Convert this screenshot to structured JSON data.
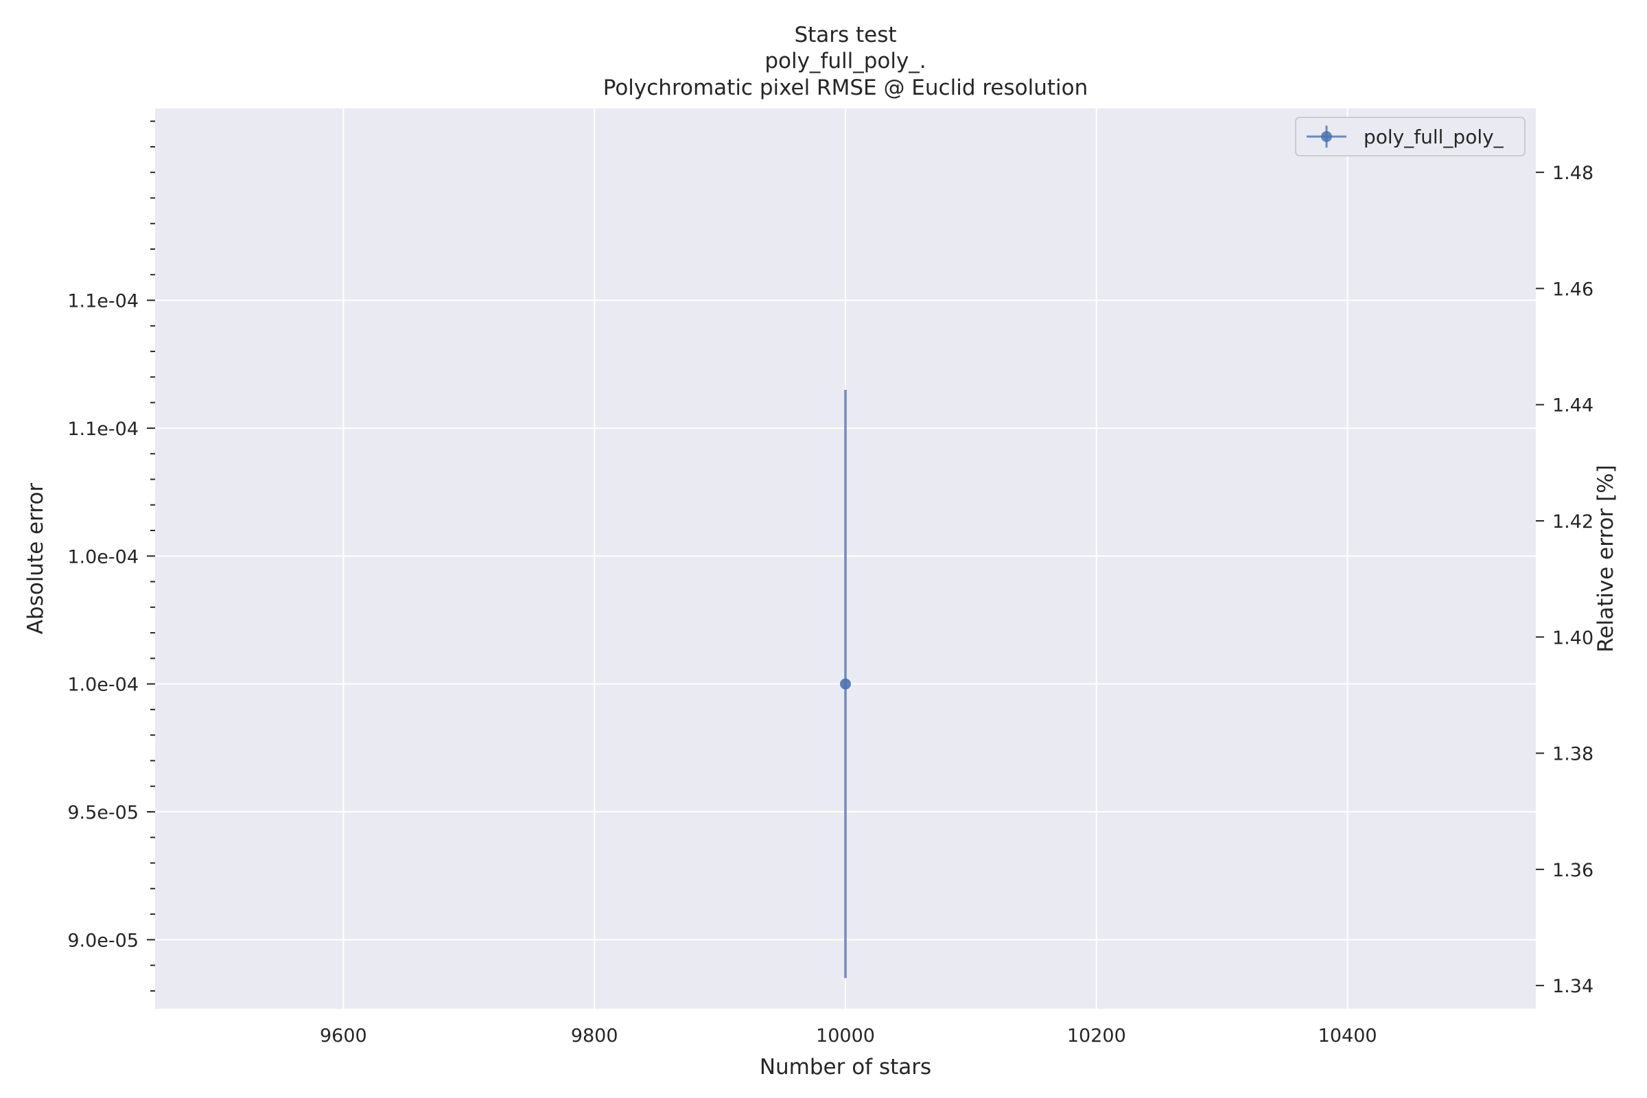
{
  "chart_data": {
    "type": "scatter",
    "title": "Stars test",
    "subtitle": "poly_full_poly_.",
    "subtitle2": "Polychromatic pixel RMSE @ Euclid resolution",
    "xlabel": "Number of stars",
    "ylabel": "Absolute error",
    "y2label": "Relative error [%]",
    "xlim": [
      9450,
      10550
    ],
    "ylim": [
      8.73e-05,
      0.0001225
    ],
    "y2lim": [
      1.336,
      1.491
    ],
    "x_ticks": [
      9600,
      9800,
      10000,
      10200,
      10400
    ],
    "x_tick_labels": [
      "9600",
      "9800",
      "10000",
      "10200",
      "10400"
    ],
    "y_ticks": [
      9e-05,
      9.5e-05,
      0.0001,
      0.000105,
      0.00011,
      0.000115
    ],
    "y_tick_labels": [
      "9.0e-05",
      "9.5e-05",
      "1.0e-04",
      "1.0e-04",
      "1.1e-04",
      "1.1e-04"
    ],
    "y_minor_step": 1e-06,
    "y2_ticks": [
      1.34,
      1.36,
      1.38,
      1.4,
      1.42,
      1.44,
      1.46,
      1.48
    ],
    "y2_tick_labels": [
      "1.34",
      "1.36",
      "1.38",
      "1.40",
      "1.42",
      "1.44",
      "1.46",
      "1.48"
    ],
    "grid": true,
    "legend_position": "top-right",
    "colors": {
      "series": "#4c72b0",
      "plot_background": "#eaeaf2",
      "grid": "#ffffff",
      "text": "#262626"
    },
    "series": [
      {
        "name": "poly_full_poly_",
        "x": [
          10000
        ],
        "y": [
          0.0001
        ],
        "yerr": [
          1.15e-05
        ]
      }
    ]
  }
}
